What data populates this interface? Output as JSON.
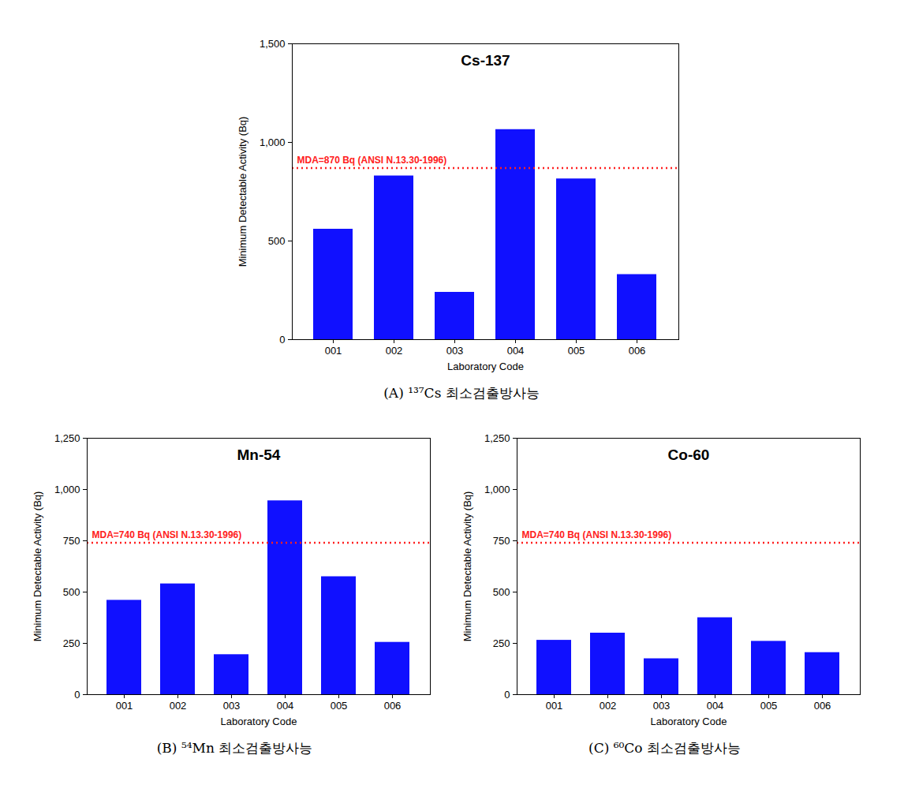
{
  "chart_data": [
    {
      "type": "bar",
      "title": "Cs-137",
      "caption": "(A) ¹³⁷Cs 최소검출방사능",
      "x_label": "Laboratory Code",
      "y_label": "Minimum Detectable Activity (Bq)",
      "categories": [
        "001",
        "002",
        "003",
        "004",
        "005",
        "006"
      ],
      "values": [
        560,
        830,
        240,
        1065,
        815,
        330
      ],
      "color": "#1010ff",
      "ylim": [
        0,
        1500
      ],
      "yticks": [
        0,
        500,
        {
          "value": 1000,
          "label": "1,000"
        },
        {
          "value": 1500,
          "label": "1,500"
        }
      ],
      "grid": false,
      "reference_line": {
        "value": 870,
        "label": "MDA=870 Bq (ANSI N.13.30-1996)",
        "color": "#ff2020",
        "line_style": "dotted"
      }
    },
    {
      "type": "bar",
      "title": "Mn-54",
      "caption": "(B) ⁵⁴Mn 최소검출방사능",
      "x_label": "Laboratory Code",
      "y_label": "Minimum Detectable Activity (Bq)",
      "categories": [
        "001",
        "002",
        "003",
        "004",
        "005",
        "006"
      ],
      "values": [
        460,
        540,
        195,
        945,
        575,
        255
      ],
      "color": "#1010ff",
      "ylim": [
        0,
        1250
      ],
      "yticks": [
        0,
        250,
        500,
        750,
        {
          "value": 1000,
          "label": "1,000"
        },
        {
          "value": 1250,
          "label": "1,250"
        }
      ],
      "grid": false,
      "reference_line": {
        "value": 740,
        "label": "MDA=740 Bq (ANSI N.13.30-1996)",
        "color": "#ff2020",
        "line_style": "dotted"
      }
    },
    {
      "type": "bar",
      "title": "Co-60",
      "caption": "(C) ⁶⁰Co 최소검출방사능",
      "x_label": "Laboratory Code",
      "y_label": "Minimum Detectable Activity (Bq)",
      "categories": [
        "001",
        "002",
        "003",
        "004",
        "005",
        "006"
      ],
      "values": [
        265,
        300,
        175,
        375,
        260,
        205
      ],
      "color": "#1010ff",
      "ylim": [
        0,
        1250
      ],
      "yticks": [
        0,
        250,
        500,
        750,
        {
          "value": 1000,
          "label": "1,000"
        },
        {
          "value": 1250,
          "label": "1,250"
        }
      ],
      "grid": false,
      "reference_line": {
        "value": 740,
        "label": "MDA=740 Bq (ANSI N.13.30-1996)",
        "color": "#ff2020",
        "line_style": "dotted"
      }
    }
  ]
}
